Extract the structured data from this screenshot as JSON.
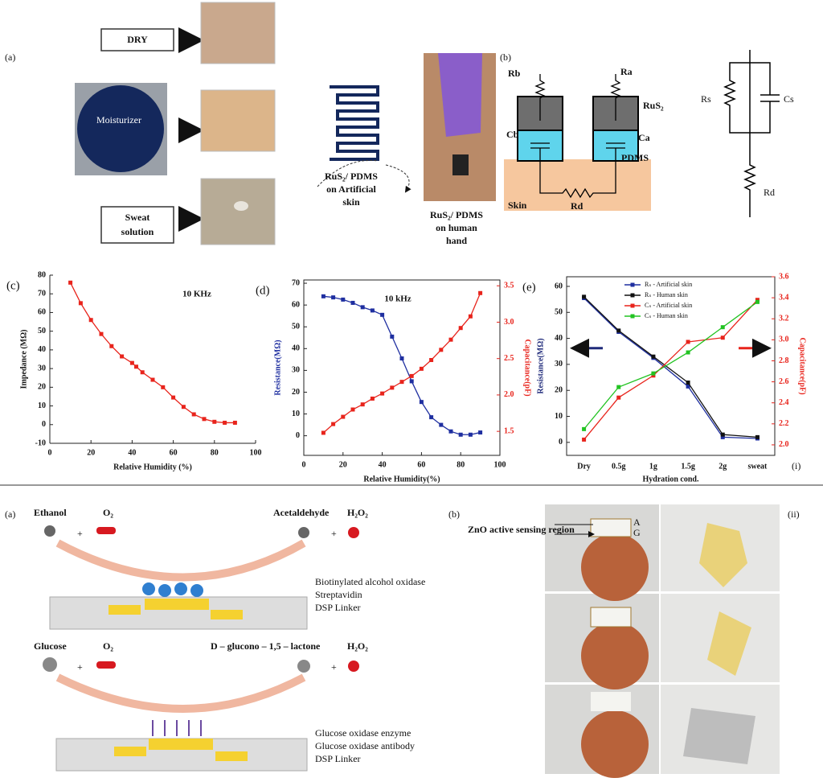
{
  "chart_data": [
    {
      "type": "line",
      "panel": "(c)",
      "annotation": "10 KHz",
      "x_label": "Relative Humidity (%)",
      "y_label": "Impedance (MΩ)",
      "x": [
        10,
        15,
        20,
        25,
        30,
        35,
        40,
        42,
        45,
        50,
        55,
        60,
        65,
        70,
        75,
        80,
        85,
        90
      ],
      "series": [
        {
          "color": "#e8241c",
          "values": [
            76,
            65,
            56,
            48.5,
            42,
            36.5,
            33,
            31,
            28,
            24,
            20,
            14.5,
            9.5,
            5.5,
            3,
            1.5,
            1,
            1
          ]
        }
      ],
      "xlim": [
        0,
        100
      ],
      "xticks": [
        0,
        20,
        40,
        60,
        80,
        100
      ],
      "ylim": [
        -10,
        80
      ],
      "yticks": [
        -10,
        0,
        10,
        20,
        30,
        40,
        50,
        60,
        70,
        80
      ]
    },
    {
      "type": "line",
      "panel": "(d)",
      "annotation": "10 kHz",
      "x_label": "Relative Humidity(%)",
      "y_label": "Resistance(MΩ)",
      "y2_label": "Capacitance(pF)",
      "y_color": "#1f2fa0",
      "y2_color": "#e8241c",
      "x": [
        10,
        15,
        20,
        25,
        30,
        35,
        40,
        45,
        50,
        55,
        60,
        65,
        70,
        75,
        80,
        85,
        90
      ],
      "series": [
        {
          "color": "#1f2fa0",
          "values": [
            64,
            63.5,
            62.5,
            61,
            59,
            57.5,
            55.5,
            45.5,
            35.5,
            25,
            15.5,
            8.5,
            5,
            2,
            0.5,
            0.5,
            1.5
          ]
        },
        {
          "color": "#e8241c",
          "axis": "y2",
          "values": [
            1.48,
            1.6,
            1.7,
            1.8,
            1.87,
            1.95,
            2.02,
            2.1,
            2.18,
            2.26,
            2.36,
            2.48,
            2.62,
            2.76,
            2.92,
            3.08,
            3.4
          ]
        }
      ],
      "xlim": [
        0,
        100
      ],
      "xticks": [
        0,
        20,
        40,
        60,
        80,
        100
      ],
      "ylim": [
        -9,
        71.5
      ],
      "yticks": [
        0,
        10,
        20,
        30,
        40,
        50,
        60,
        70
      ],
      "y2lim": [
        1.17,
        3.58
      ],
      "y2ticks": [
        1.5,
        {
          "value": 2,
          "label": "2.0"
        },
        2.5,
        {
          "value": 3,
          "label": "3.0"
        },
        3.5
      ]
    },
    {
      "type": "line",
      "panel": "(e)",
      "x_label": "Hydration cond.",
      "y_label": "Resistance(MΩ)",
      "y2_label": "Capacitance(pF)",
      "y_color": "#1f2a7a",
      "y2_color": "#e8241c",
      "legend": "upper center",
      "categories": [
        "Dry",
        "0.5g",
        "1g",
        "1.5g",
        "2g",
        "sweat"
      ],
      "series": [
        {
          "name": "Rₛ - Artificial skin",
          "color": "#1f2fa0",
          "values": [
            55.5,
            42.5,
            32.5,
            21.5,
            2,
            1.5
          ]
        },
        {
          "name": "Rₛ - Human skin",
          "color": "#111111",
          "values": [
            56,
            43,
            33,
            23,
            3,
            2
          ]
        },
        {
          "name": "Cₛ - Artificial skin",
          "color": "#e8241c",
          "axis": "y2",
          "values": [
            2.05,
            2.45,
            2.66,
            2.98,
            3.02,
            3.38
          ]
        },
        {
          "name": "Cₛ - Human skin",
          "color": "#22c322",
          "axis": "y2",
          "values": [
            2.15,
            2.55,
            2.68,
            2.88,
            3.12,
            3.36
          ]
        }
      ],
      "ylim": [
        -5,
        63.7
      ],
      "yticks": [
        0,
        10,
        20,
        30,
        40,
        50,
        60
      ],
      "y2lim": [
        1.9,
        3.6
      ],
      "y2ticks": [
        {
          "value": 2,
          "label": "2.0"
        },
        2.2,
        2.4,
        2.6,
        2.8,
        {
          "value": 3,
          "label": "3.0"
        },
        3.2,
        3.4,
        3.6
      ]
    }
  ],
  "top": {
    "panel_a": "(a)",
    "dry": "DRY",
    "moisturizer": "Moisturizer",
    "sweat": [
      "Sweat",
      "solution"
    ],
    "artificial_caption": [
      "RuS₂/ PDMS",
      "on Artificial",
      "skin"
    ],
    "hand_caption": [
      "RuS₂/ PDMS",
      "on human",
      "hand"
    ],
    "panel_b": "(b)",
    "rb": "Rb",
    "ra": "Ra",
    "rus2": "RuS₂",
    "cb": "Cb",
    "ca": "Ca",
    "pdms": "PDMS",
    "skin": "Skin",
    "rd": "Rd",
    "rs": "Rs",
    "cs": "Cs",
    "rd2": "Rd",
    "part": "(i)"
  },
  "bottom": {
    "panel_a": "(a)",
    "ethanol": "Ethanol",
    "o2_1": "O₂",
    "acetaldehyde": "Acetaldehyde",
    "h2o2_1": "H₂O₂",
    "plus": "+",
    "legend1": [
      "Biotinylated alcohol oxidase",
      "Streptavidin",
      "DSP Linker"
    ],
    "glucose": "Glucose",
    "o2_2": "O₂",
    "lactone": "D – glucono – 1,5 – lactone",
    "h2o2_2": "H₂O₂",
    "legend2": [
      "Glucose oxidase enzyme",
      "Glucose oxidase antibody",
      "DSP Linker"
    ],
    "panel_b": "(b)",
    "zno": "ZnO active sensing region",
    "a": "A",
    "g": "G",
    "part": "(ii)"
  }
}
